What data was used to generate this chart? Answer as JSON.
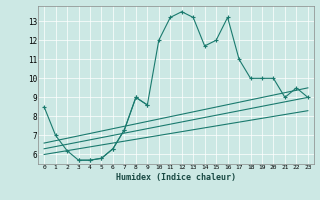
{
  "xlabel": "Humidex (Indice chaleur)",
  "bg_color": "#cce8e4",
  "line_color": "#1a7a6e",
  "xmin": -0.5,
  "xmax": 23.5,
  "ymin": 5.5,
  "ymax": 13.8,
  "yticks": [
    6,
    7,
    8,
    9,
    10,
    11,
    12,
    13
  ],
  "xticks": [
    0,
    1,
    2,
    3,
    4,
    5,
    6,
    7,
    8,
    9,
    10,
    11,
    12,
    13,
    14,
    15,
    16,
    17,
    18,
    19,
    20,
    21,
    22,
    23
  ],
  "series": [
    {
      "x": [
        0,
        1,
        2,
        3,
        4,
        5,
        6,
        7,
        8,
        9,
        10,
        11,
        12,
        13,
        14,
        15,
        16,
        17,
        18,
        19,
        20,
        21,
        22,
        23
      ],
      "y": [
        8.5,
        7.0,
        6.2,
        5.7,
        5.7,
        5.8,
        6.3,
        7.3,
        9.0,
        8.6,
        12.0,
        13.2,
        13.5,
        13.2,
        11.7,
        12.0,
        13.2,
        11.0,
        10.0,
        10.0,
        10.0,
        9.0,
        9.5,
        9.0
      ],
      "marker": true
    },
    {
      "x": [
        3,
        4,
        5,
        6,
        7,
        8,
        9
      ],
      "y": [
        5.7,
        5.7,
        5.8,
        6.3,
        7.3,
        9.0,
        8.6
      ],
      "marker": true
    },
    {
      "x": [
        0,
        23
      ],
      "y": [
        6.0,
        8.3
      ],
      "marker": false
    },
    {
      "x": [
        0,
        23
      ],
      "y": [
        6.3,
        9.0
      ],
      "marker": false
    },
    {
      "x": [
        0,
        23
      ],
      "y": [
        6.6,
        9.5
      ],
      "marker": false
    }
  ]
}
